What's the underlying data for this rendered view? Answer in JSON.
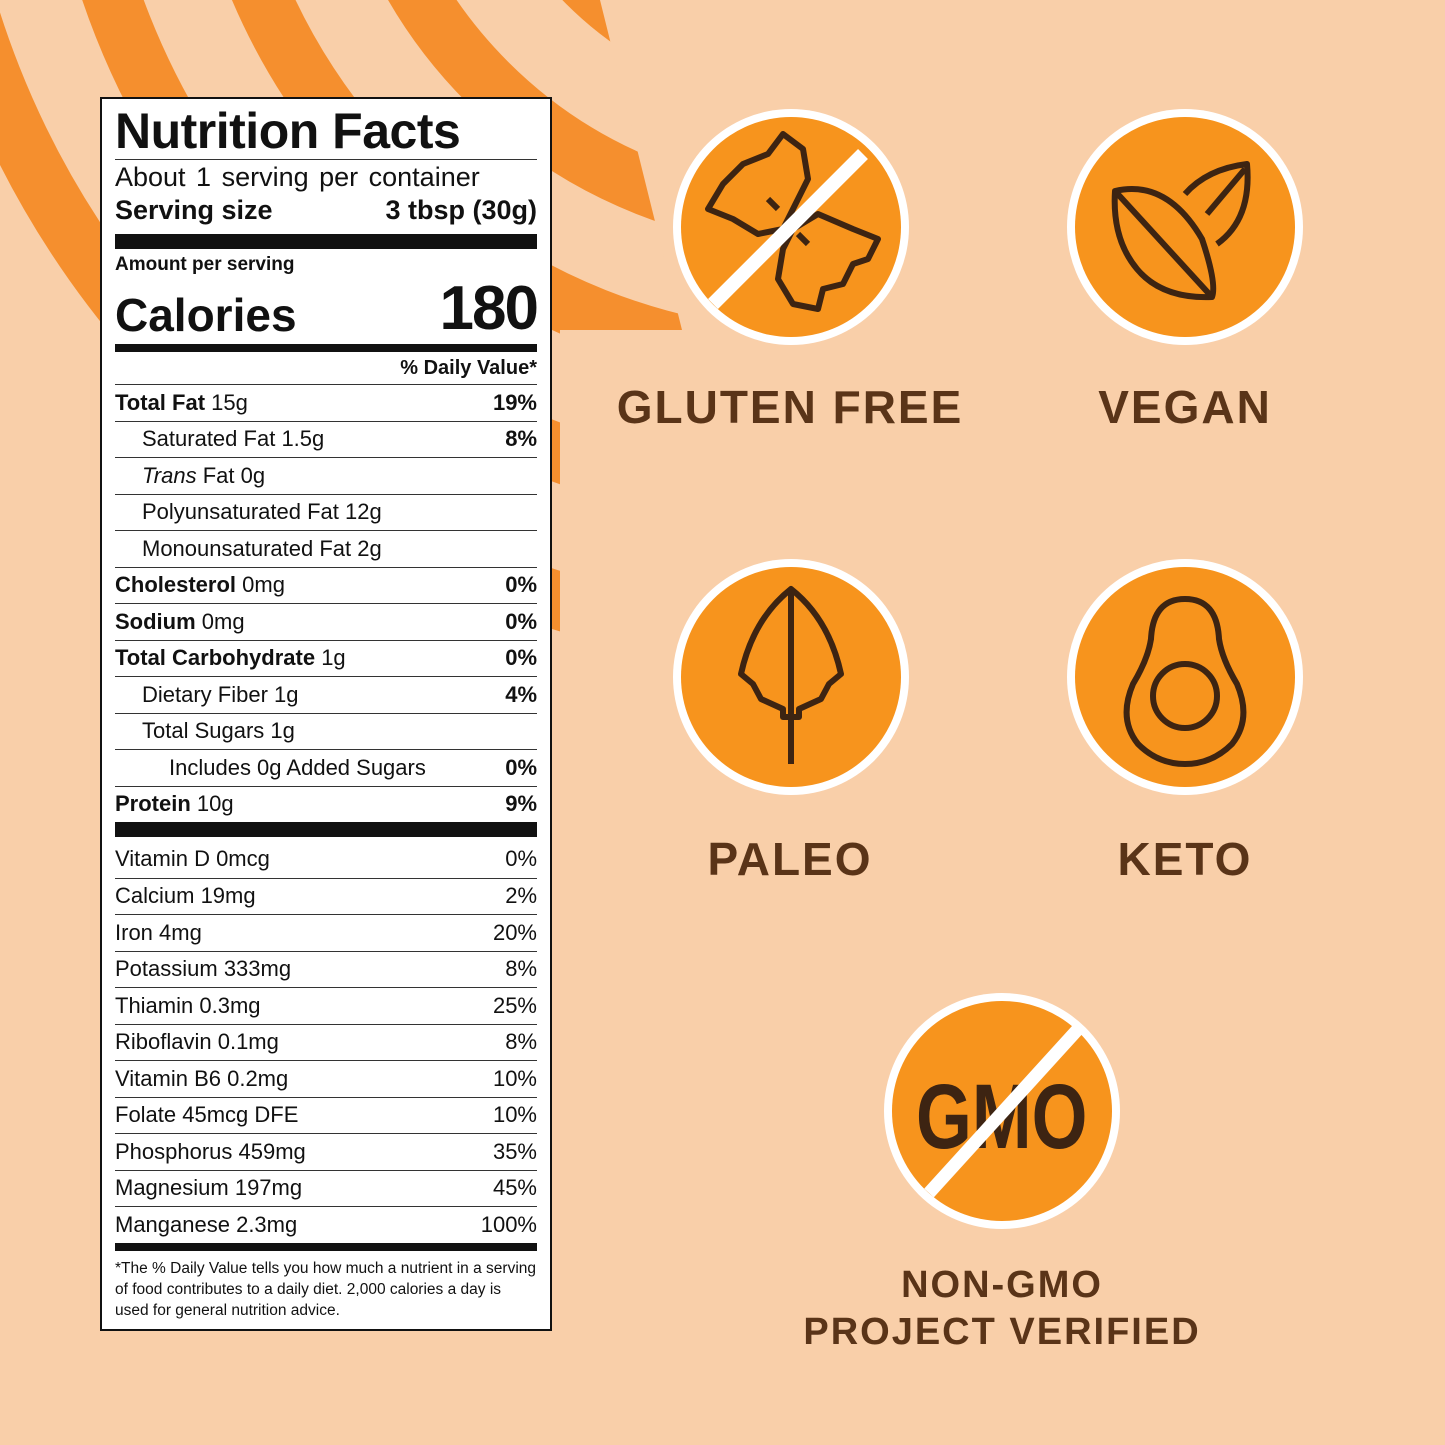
{
  "colors": {
    "background": "#f9cfa9",
    "stripe": "#f58f2e",
    "badge_fill": "#f7941d",
    "icon_stroke": "#3d2412",
    "badge_text": "#5a3418"
  },
  "label": {
    "title": "Nutrition Facts",
    "servings": "About 1 serving per container",
    "serving_size_label": "Serving size",
    "serving_size_value": "3 tbsp (30g)",
    "amount_per_serving": "Amount per serving",
    "calories_label": "Calories",
    "calories_value": "180",
    "dv_header": "% Daily Value*",
    "nutrients": [
      {
        "name": "Total Fat",
        "amount": "15g",
        "dv": "19%"
      },
      {
        "name": "Saturated Fat",
        "amount": "1.5g",
        "dv": "8%"
      },
      {
        "name": "Trans",
        "amount": "Fat 0g",
        "dv": ""
      },
      {
        "name": "Polyunsaturated Fat",
        "amount": "12g",
        "dv": ""
      },
      {
        "name": "Monounsaturated Fat",
        "amount": "2g",
        "dv": ""
      },
      {
        "name": "Cholesterol",
        "amount": "0mg",
        "dv": "0%"
      },
      {
        "name": "Sodium",
        "amount": "0mg",
        "dv": "0%"
      },
      {
        "name": "Total Carbohydrate",
        "amount": "1g",
        "dv": "0%"
      },
      {
        "name": "Dietary Fiber",
        "amount": "1g",
        "dv": "4%"
      },
      {
        "name": "Total Sugars",
        "amount": "1g",
        "dv": ""
      },
      {
        "name": "Includes 0g Added Sugars",
        "amount": "",
        "dv": "0%"
      },
      {
        "name": "Protein",
        "amount": "10g",
        "dv": "9%"
      }
    ],
    "vitamins": [
      {
        "name": "Vitamin D 0mcg",
        "dv": "0%"
      },
      {
        "name": "Calcium 19mg",
        "dv": "2%"
      },
      {
        "name": "Iron 4mg",
        "dv": "20%"
      },
      {
        "name": "Potassium 333mg",
        "dv": "8%"
      },
      {
        "name": "Thiamin 0.3mg",
        "dv": "25%"
      },
      {
        "name": "Riboflavin 0.1mg",
        "dv": "8%"
      },
      {
        "name": "Vitamin B6 0.2mg",
        "dv": "10%"
      },
      {
        "name": "Folate 45mcg DFE",
        "dv": "10%"
      },
      {
        "name": "Phosphorus 459mg",
        "dv": "35%"
      },
      {
        "name": "Magnesium 197mg",
        "dv": "45%"
      },
      {
        "name": "Manganese 2.3mg",
        "dv": "100%"
      }
    ],
    "footnote": "*The % Daily Value tells you how much a nutrient in a serving of food contributes to a daily diet. 2,000 calories a day is used for general nutrition advice."
  },
  "badges": [
    {
      "label": "GLUTEN FREE",
      "icon": "crossed-wheat-icon"
    },
    {
      "label": "VEGAN",
      "icon": "leaves-icon"
    },
    {
      "label": "PALEO",
      "icon": "arrowhead-icon"
    },
    {
      "label": "KETO",
      "icon": "avocado-icon"
    },
    {
      "label": "NON-GMO",
      "label2": "PROJECT VERIFIED",
      "icon": "crossed-gmo-icon",
      "icon_text": "GMO"
    }
  ]
}
